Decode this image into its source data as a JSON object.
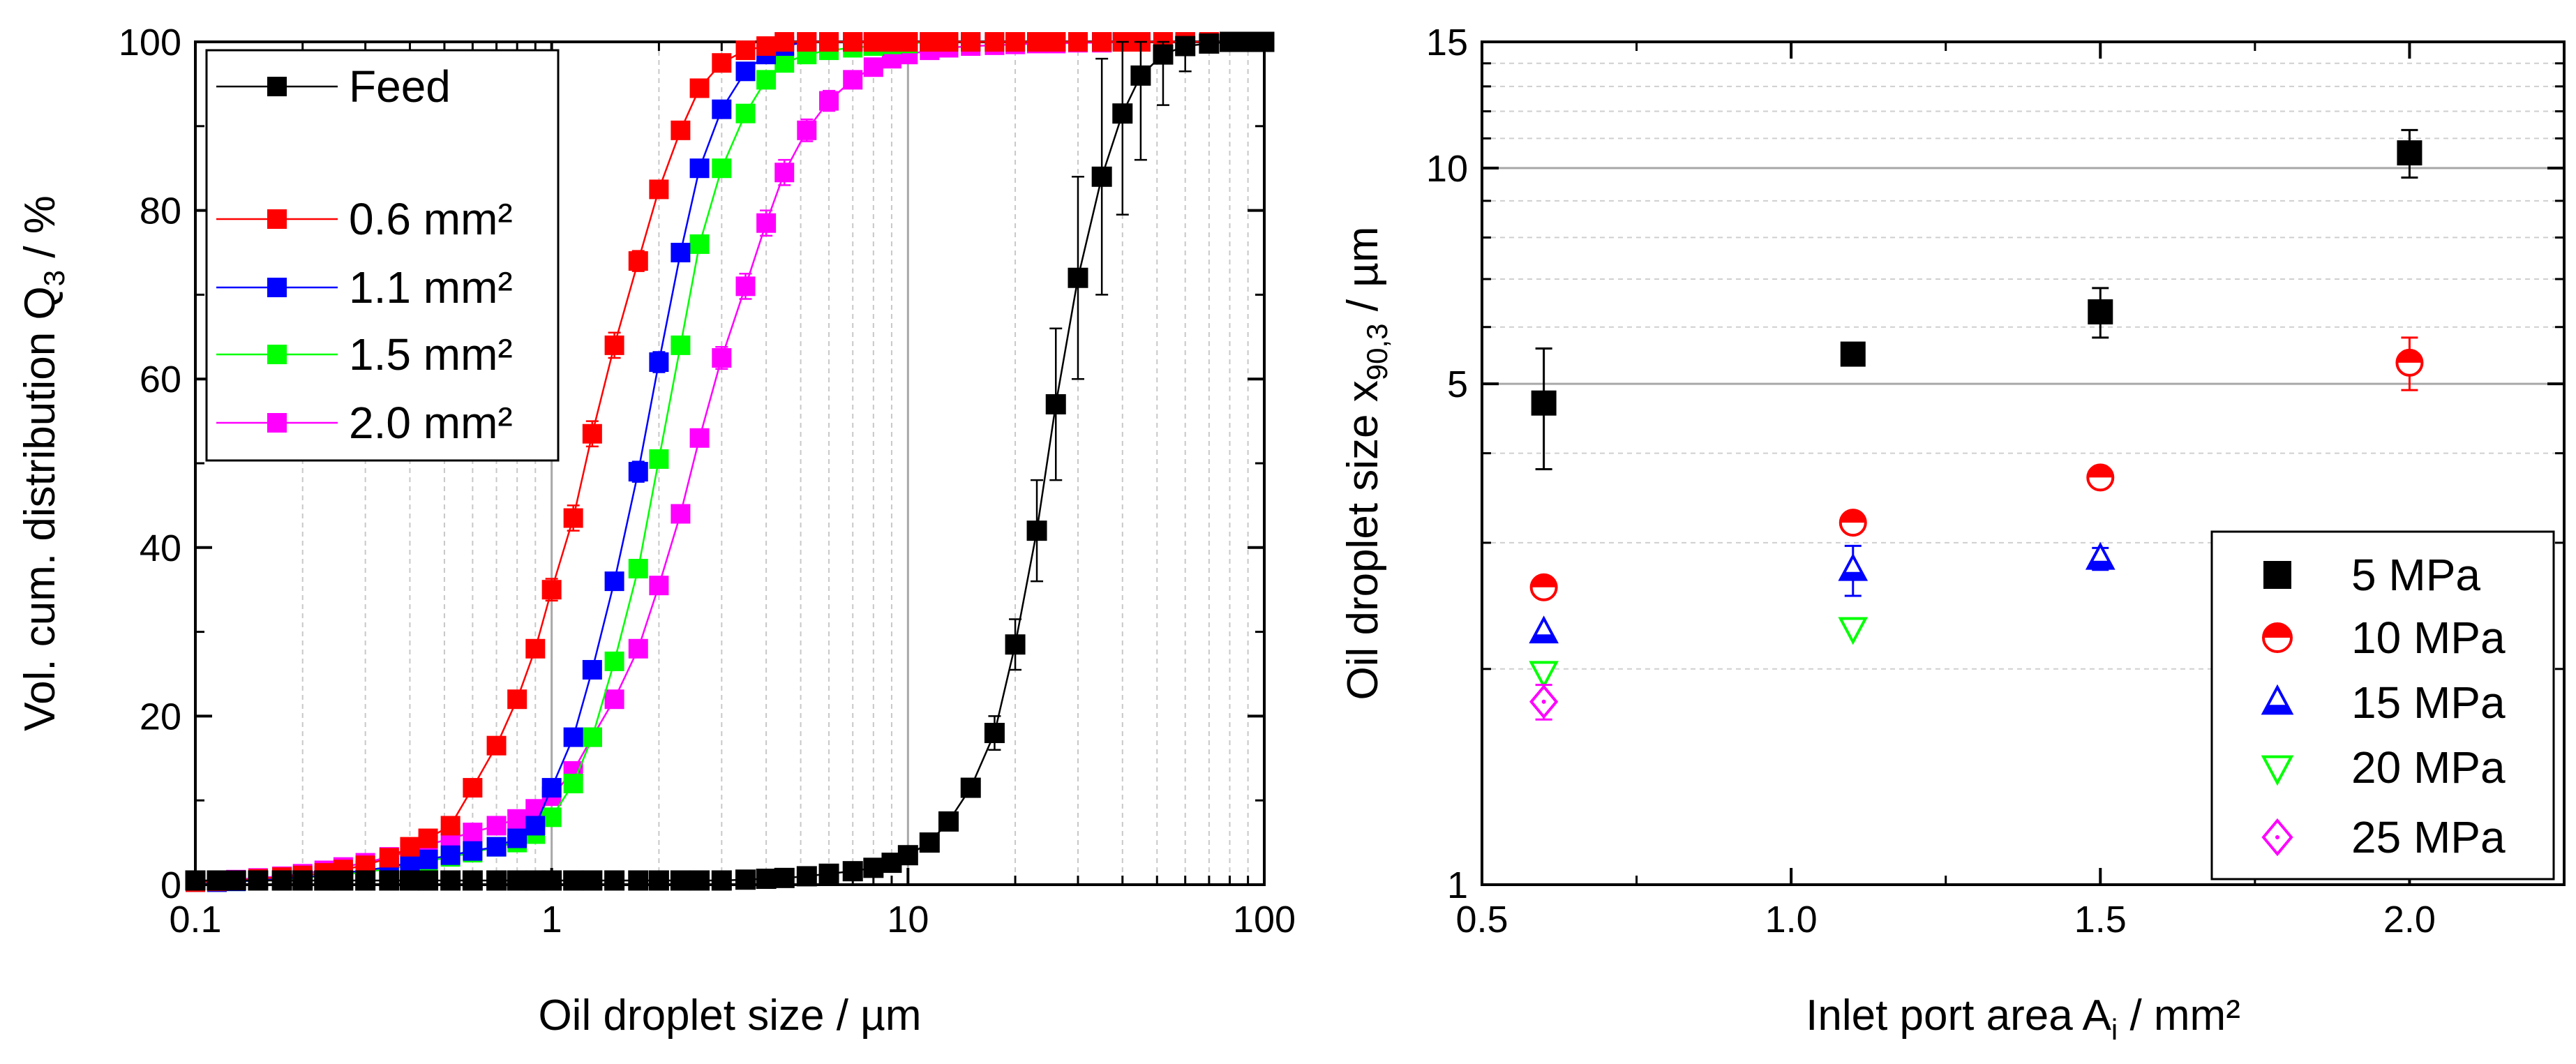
{
  "chart_data": [
    {
      "type": "line",
      "xscale": "log",
      "xlim": [
        0.1,
        100
      ],
      "ylim": [
        0,
        100
      ],
      "xlabel": "Oil droplet size / µm",
      "ylabel_main": "Vol. cum. distribution Q",
      "ylabel_sub": "3",
      "ylabel_suffix": " / %",
      "xticks": [
        "0.1",
        "1",
        "10",
        "100"
      ],
      "yticks": [
        "0",
        "20",
        "40",
        "60",
        "80",
        "100"
      ],
      "legend_position": "top-left",
      "x": [
        0.1,
        0.115,
        0.13,
        0.15,
        0.175,
        0.2,
        0.23,
        0.26,
        0.3,
        0.35,
        0.4,
        0.45,
        0.52,
        0.6,
        0.7,
        0.8,
        0.9,
        1.0,
        1.15,
        1.3,
        1.5,
        1.75,
        2.0,
        2.3,
        2.6,
        3.0,
        3.5,
        4.0,
        4.5,
        5.2,
        6.0,
        7.0,
        8.0,
        9.0,
        10,
        11.5,
        13,
        15,
        17.5,
        20,
        23,
        26,
        30,
        35,
        40,
        45,
        52,
        60,
        70,
        80,
        90,
        100
      ],
      "series": [
        {
          "name": "Feed",
          "color": "#000000",
          "error": [
            0,
            0,
            0,
            0,
            0,
            0,
            0,
            0,
            0,
            0,
            0,
            0,
            0,
            0,
            0,
            0,
            0,
            0,
            0,
            0,
            0,
            0,
            0,
            0,
            0,
            0,
            0,
            0,
            0,
            0,
            0,
            0,
            0,
            0,
            0,
            0,
            0,
            1,
            2,
            3,
            6,
            9,
            12,
            14,
            12,
            10,
            6,
            3,
            1,
            0,
            0,
            0
          ],
          "values": [
            0.5,
            0.5,
            0.5,
            0.5,
            0.5,
            0.5,
            0.5,
            0.5,
            0.5,
            0.5,
            0.5,
            0.5,
            0.5,
            0.5,
            0.5,
            0.5,
            0.5,
            0.5,
            0.5,
            0.5,
            0.5,
            0.5,
            0.5,
            0.5,
            0.5,
            0.5,
            0.6,
            0.7,
            0.8,
            1.0,
            1.3,
            1.6,
            2.0,
            2.6,
            3.5,
            5.0,
            7.5,
            11.5,
            18.0,
            28.5,
            42.0,
            57.0,
            72.0,
            84.0,
            91.5,
            96.0,
            98.5,
            99.5,
            99.8,
            100,
            100,
            100
          ]
        },
        {
          "name": "0.6 mm²",
          "color": "#ff0000",
          "error": [
            0,
            0,
            0,
            0,
            0,
            0,
            0,
            0,
            0,
            0,
            0,
            0,
            0,
            0,
            0,
            0.8,
            1.0,
            1.3,
            1.5,
            1.5,
            1.5,
            1.2,
            1.0,
            0.8,
            0.5,
            0.3,
            0,
            0,
            0,
            0,
            0,
            0,
            0,
            0,
            0,
            0,
            0,
            0,
            0,
            0,
            0,
            0,
            0,
            0,
            0,
            0,
            0,
            0,
            0,
            0,
            0,
            0
          ],
          "values": [
            0.3,
            0.4,
            0.5,
            0.7,
            0.9,
            1.1,
            1.4,
            1.8,
            2.3,
            3.2,
            4.5,
            5.5,
            7.0,
            11.5,
            16.5,
            22.0,
            28.0,
            35.0,
            43.5,
            53.5,
            64.0,
            74.0,
            82.5,
            89.5,
            94.5,
            97.5,
            99.0,
            99.5,
            100,
            100,
            100,
            100,
            100,
            100,
            100,
            100,
            100,
            100,
            100,
            100,
            100,
            100,
            100,
            100,
            100,
            100,
            100,
            100,
            100,
            100,
            100,
            100
          ]
        },
        {
          "name": "1.1 mm²",
          "color": "#0000ff",
          "error": [
            0,
            0,
            0,
            0,
            0,
            0,
            0,
            0,
            0,
            0,
            0,
            0,
            0,
            0,
            0,
            0,
            0,
            0,
            0.6,
            0.8,
            1.0,
            1.2,
            1.2,
            1.0,
            0.8,
            0.5,
            0.3,
            0,
            0,
            0,
            0,
            0,
            0,
            0,
            0,
            0,
            0,
            0,
            0,
            0,
            0,
            0,
            0,
            0,
            0,
            0,
            0,
            0,
            0,
            0,
            0,
            0
          ],
          "values": [
            0.3,
            0.3,
            0.4,
            0.5,
            0.7,
            0.9,
            1.1,
            1.4,
            1.7,
            2.1,
            2.6,
            3.0,
            3.5,
            4.0,
            4.5,
            5.5,
            7.0,
            11.5,
            17.5,
            25.5,
            36.0,
            49.0,
            62.0,
            75.0,
            85.0,
            92.0,
            96.5,
            98.5,
            99.5,
            100,
            100,
            100,
            100,
            100,
            100,
            100,
            100,
            100,
            100,
            100,
            100,
            100,
            100,
            100,
            100,
            100,
            100,
            100,
            100,
            100,
            100,
            100
          ]
        },
        {
          "name": "1.5 mm²",
          "color": "#00ff00",
          "error": [
            0,
            0,
            0,
            0,
            0,
            0,
            0,
            0,
            0,
            0,
            0,
            0,
            0,
            0,
            0,
            0,
            0,
            0,
            0,
            0,
            0,
            0,
            0,
            0,
            0,
            0,
            0,
            0,
            0,
            0,
            0,
            0,
            0,
            0,
            0,
            0,
            0,
            0,
            0,
            0,
            0,
            0,
            0,
            0,
            0,
            0,
            0,
            0,
            0,
            0,
            0,
            0
          ],
          "values": [
            0.3,
            0.3,
            0.4,
            0.5,
            0.6,
            0.8,
            1.0,
            1.2,
            1.5,
            1.9,
            2.3,
            2.8,
            3.3,
            3.8,
            4.5,
            5.0,
            6.0,
            8.0,
            12.0,
            17.5,
            26.5,
            37.5,
            50.5,
            64.0,
            76.0,
            85.0,
            91.5,
            95.5,
            97.5,
            98.5,
            99.0,
            99.3,
            99.5,
            99.7,
            99.8,
            100,
            100,
            100,
            100,
            100,
            100,
            100,
            100,
            100,
            100,
            100,
            100,
            100,
            100,
            100,
            100,
            100
          ]
        },
        {
          "name": "2.0 mm²",
          "color": "#ff00ff",
          "error": [
            0,
            0,
            0,
            0,
            0,
            0,
            0,
            0,
            0,
            0,
            0,
            0,
            0,
            0,
            0,
            0,
            0,
            0,
            0,
            0,
            0,
            0,
            0,
            0,
            1.0,
            1.3,
            1.5,
            1.5,
            1.5,
            1.3,
            1.2,
            1.0,
            0.8,
            0,
            0,
            0,
            0,
            0,
            0,
            0,
            0,
            0,
            0,
            0,
            0,
            0,
            0,
            0,
            0,
            0,
            0,
            0
          ],
          "values": [
            0.3,
            0.4,
            0.6,
            0.8,
            1.0,
            1.3,
            1.7,
            2.1,
            2.6,
            3.3,
            4.0,
            4.7,
            5.5,
            6.2,
            7.0,
            7.8,
            9.0,
            10.5,
            13.5,
            17.5,
            22.0,
            28.0,
            35.5,
            44.0,
            53.0,
            62.5,
            71.0,
            78.5,
            84.5,
            89.5,
            93.0,
            95.5,
            97.0,
            98.0,
            98.5,
            99.0,
            99.3,
            99.5,
            99.6,
            99.7,
            99.8,
            99.8,
            99.9,
            99.9,
            100,
            100,
            100,
            100,
            100,
            100,
            100,
            100
          ]
        }
      ]
    },
    {
      "type": "scatter",
      "yscale": "log",
      "xlim": [
        0.5,
        2.25
      ],
      "ylim": [
        1,
        15
      ],
      "xlabel_main": "Inlet port area A",
      "xlabel_sub": "i",
      "xlabel_suffix": " / mm²",
      "ylabel_main": "Oil droplet size x",
      "ylabel_sub": "90,3",
      "ylabel_suffix": " / µm",
      "xticks": [
        "0.5",
        "1.0",
        "1.5",
        "2.0"
      ],
      "yticks": [
        "1",
        "5",
        "10",
        "15"
      ],
      "legend_position": "bottom-right",
      "series": [
        {
          "name": "5 MPa",
          "color": "#000000",
          "marker": "square",
          "x": [
            0.6,
            1.1,
            1.5,
            2.0
          ],
          "y": [
            4.7,
            5.5,
            6.3,
            10.5
          ],
          "err": [
            0.9,
            0,
            0.5,
            0.8
          ]
        },
        {
          "name": "10 MPa",
          "color": "#ff0000",
          "marker": "half-circle",
          "x": [
            0.6,
            1.1,
            1.5,
            2.0
          ],
          "y": [
            2.6,
            3.2,
            3.7,
            5.35
          ],
          "err": [
            0,
            0,
            0,
            0.45
          ]
        },
        {
          "name": "15 MPa",
          "color": "#0000ff",
          "marker": "triangle-up",
          "x": [
            0.6,
            1.1,
            1.5
          ],
          "y": [
            2.25,
            2.75,
            2.85
          ],
          "err": [
            0,
            0.22,
            0.1
          ]
        },
        {
          "name": "20 MPa",
          "color": "#00ff00",
          "marker": "triangle-down",
          "x": [
            0.6,
            1.1
          ],
          "y": [
            1.98,
            2.28
          ],
          "err": [
            0,
            0
          ]
        },
        {
          "name": "25 MPa",
          "color": "#ff00ff",
          "marker": "diamond",
          "x": [
            0.6
          ],
          "y": [
            1.8
          ],
          "err": [
            0.1
          ]
        }
      ]
    }
  ]
}
